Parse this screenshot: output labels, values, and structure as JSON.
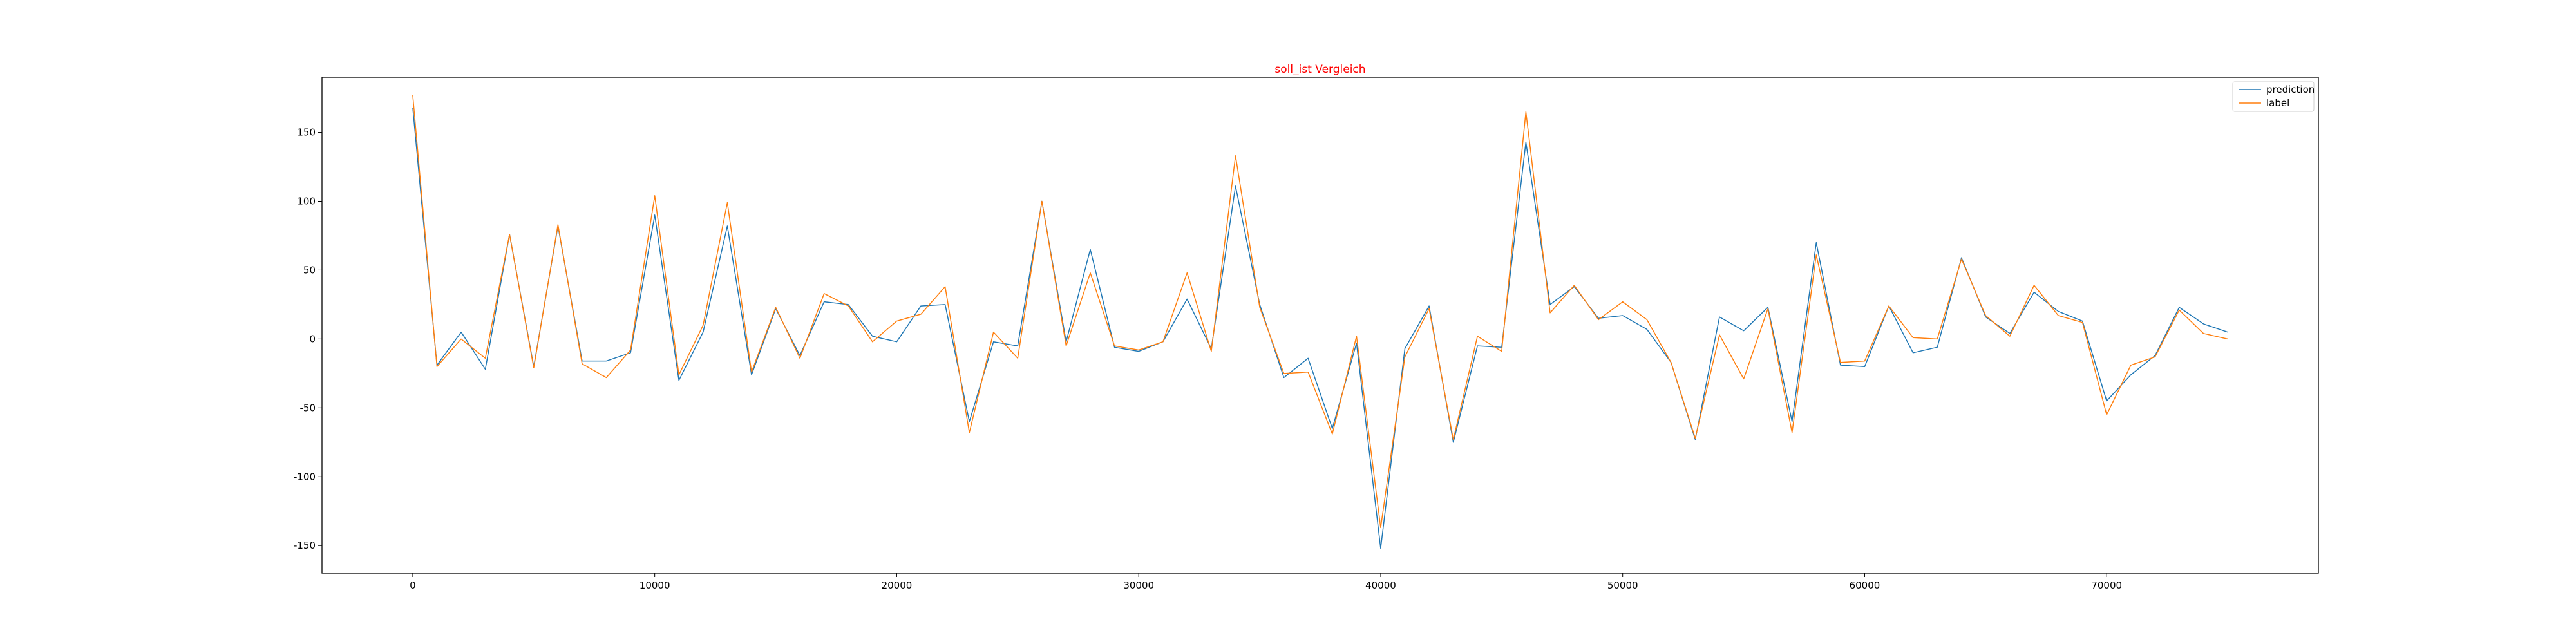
{
  "chart_data": {
    "type": "line",
    "title": "soll_ist Vergleich",
    "title_color": "#ff0000",
    "xlabel": "",
    "ylabel": "",
    "xlim": [
      -3750,
      78750
    ],
    "ylim": [
      -170,
      190
    ],
    "x_ticks": [
      0,
      10000,
      20000,
      30000,
      40000,
      50000,
      60000,
      70000
    ],
    "y_ticks": [
      -150,
      -100,
      -50,
      0,
      50,
      100,
      150
    ],
    "grid": false,
    "legend_position": "top-right",
    "x": [
      0,
      1000,
      2000,
      3000,
      4000,
      5000,
      6000,
      7000,
      8000,
      9000,
      10000,
      11000,
      12000,
      13000,
      14000,
      15000,
      16000,
      17000,
      18000,
      19000,
      20000,
      21000,
      22000,
      23000,
      24000,
      25000,
      26000,
      27000,
      28000,
      29000,
      30000,
      31000,
      32000,
      33000,
      34000,
      35000,
      36000,
      37000,
      38000,
      39000,
      40000,
      41000,
      42000,
      43000,
      44000,
      45000,
      46000,
      47000,
      48000,
      49000,
      50000,
      51000,
      52000,
      53000,
      54000,
      55000,
      56000,
      57000,
      58000,
      59000,
      60000,
      61000,
      62000,
      63000,
      64000,
      65000,
      66000,
      67000,
      68000,
      69000,
      70000,
      71000,
      72000,
      73000,
      74000,
      75000
    ],
    "series": [
      {
        "name": "prediction",
        "color": "#1f77b4",
        "values": [
          168,
          -19,
          5,
          -22,
          76,
          -20,
          82,
          -16,
          -16,
          -10,
          90,
          -30,
          5,
          82,
          -26,
          22,
          -12,
          27,
          25,
          2,
          -2,
          24,
          25,
          -60,
          -2,
          -5,
          100,
          -2,
          65,
          -6,
          -9,
          -2,
          29,
          -7,
          111,
          25,
          -28,
          -14,
          -65,
          -3,
          -152,
          -7,
          24,
          -75,
          -5,
          -6,
          143,
          25,
          38,
          15,
          17,
          7,
          -17,
          -73,
          16,
          6,
          23,
          -60,
          70,
          -19,
          -20,
          24,
          -10,
          -6,
          59,
          16,
          4,
          34,
          20,
          13,
          -45,
          -26,
          -12,
          23,
          11,
          5
        ]
      },
      {
        "name": "label",
        "color": "#ff7f0e",
        "values": [
          177,
          -20,
          0,
          -14,
          76,
          -21,
          83,
          -18,
          -28,
          -8,
          104,
          -26,
          10,
          99,
          -24,
          23,
          -14,
          33,
          24,
          -2,
          13,
          18,
          38,
          -68,
          5,
          -14,
          100,
          -5,
          48,
          -5,
          -8,
          -2,
          48,
          -9,
          133,
          23,
          -25,
          -24,
          -69,
          2,
          -137,
          -13,
          22,
          -73,
          2,
          -9,
          165,
          19,
          39,
          14,
          27,
          14,
          -17,
          -72,
          3,
          -29,
          22,
          -68,
          61,
          -17,
          -16,
          24,
          1,
          0,
          58,
          17,
          2,
          39,
          17,
          12,
          -55,
          -19,
          -13,
          21,
          4,
          0
        ]
      }
    ]
  }
}
